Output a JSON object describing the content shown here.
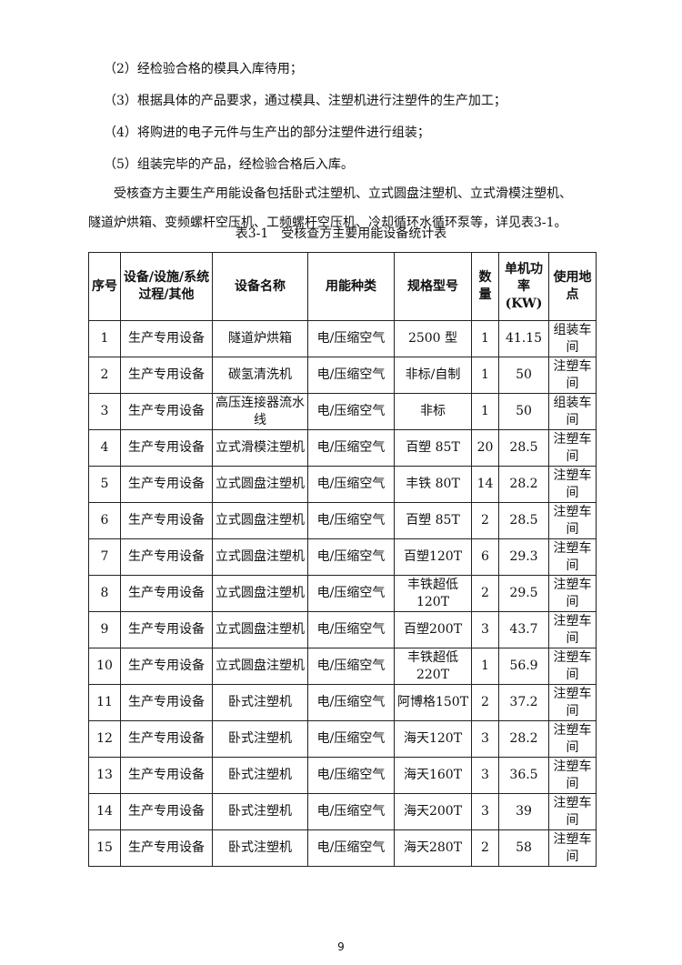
{
  "paragraphs": [
    "（2）经检验合格的模具入库待用；",
    "（3）根据具体的产品要求，通过模具、注塑机进行注塑件的生产加工；",
    "（4）将购进的电子元件与生产出的部分注塑件进行组装；",
    "（5）组装完毕的产品，经检验合格后入库。",
    "受核查方主要生产用能设备包括卧式注塑机、立式圆盘注塑机、立式滑模注塑机、",
    "隧道炉烘箱、变频螺杆空压机、工频螺杆空压机、冷却循环水循环泵等，详见表3-1。"
  ],
  "table": {
    "caption": "表3-1　受核查方主要用能设备统计表",
    "headers": [
      "序号",
      "设备/设施/系统过程/其他",
      "设备名称",
      "用能种类",
      "规格型号",
      "数量",
      "单机功率(KW)",
      "使用地点"
    ],
    "rows": [
      [
        "1",
        "生产专用设备",
        "隧道炉烘箱",
        "电/压缩空气",
        "2500 型",
        "1",
        "41.15",
        "组装车间"
      ],
      [
        "2",
        "生产专用设备",
        "碳氢清洗机",
        "电/压缩空气",
        "非标/自制",
        "1",
        "50",
        "注塑车间"
      ],
      [
        "3",
        "生产专用设备",
        "高压连接器流水线",
        "电/压缩空气",
        "非标",
        "1",
        "50",
        "组装车间"
      ],
      [
        "4",
        "生产专用设备",
        "立式滑模注塑机",
        "电/压缩空气",
        "百塑 85T",
        "20",
        "28.5",
        "注塑车间"
      ],
      [
        "5",
        "生产专用设备",
        "立式圆盘注塑机",
        "电/压缩空气",
        "丰铁 80T",
        "14",
        "28.2",
        "注塑车间"
      ],
      [
        "6",
        "生产专用设备",
        "立式圆盘注塑机",
        "电/压缩空气",
        "百塑 85T",
        "2",
        "28.5",
        "注塑车间"
      ],
      [
        "7",
        "生产专用设备",
        "立式圆盘注塑机",
        "电/压缩空气",
        "百塑120T",
        "6",
        "29.3",
        "注塑车间"
      ],
      [
        "8",
        "生产专用设备",
        "立式圆盘注塑机",
        "电/压缩空气",
        "丰铁超低120T",
        "2",
        "29.5",
        "注塑车间"
      ],
      [
        "9",
        "生产专用设备",
        "立式圆盘注塑机",
        "电/压缩空气",
        "百塑200T",
        "3",
        "43.7",
        "注塑车间"
      ],
      [
        "10",
        "生产专用设备",
        "立式圆盘注塑机",
        "电/压缩空气",
        "丰铁超低220T",
        "1",
        "56.9",
        "注塑车间"
      ],
      [
        "11",
        "生产专用设备",
        "卧式注塑机",
        "电/压缩空气",
        "阿博格150T",
        "2",
        "37.2",
        "注塑车间"
      ],
      [
        "12",
        "生产专用设备",
        "卧式注塑机",
        "电/压缩空气",
        "海天120T",
        "3",
        "28.2",
        "注塑车间"
      ],
      [
        "13",
        "生产专用设备",
        "卧式注塑机",
        "电/压缩空气",
        "海天160T",
        "3",
        "36.5",
        "注塑车间"
      ],
      [
        "14",
        "生产专用设备",
        "卧式注塑机",
        "电/压缩空气",
        "海天200T",
        "3",
        "39",
        "注塑车间"
      ],
      [
        "15",
        "生产专用设备",
        "卧式注塑机",
        "电/压缩空气",
        "海天280T",
        "2",
        "58",
        "注塑车间"
      ]
    ]
  },
  "page_number": "9"
}
